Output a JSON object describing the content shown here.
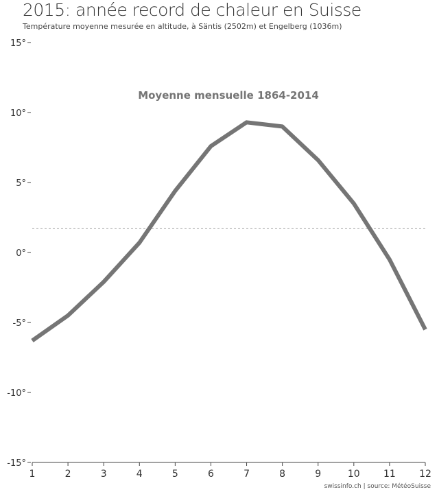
{
  "header": {
    "title": "2015: année record de chaleur en Suisse",
    "subtitle": "Température moyenne mesurée en altitude, à Säntis (2502m) et Engelberg (1036m)"
  },
  "footer": {
    "source": "swissinfo.ch | source: MétéoSuisse"
  },
  "chart_data": {
    "type": "line",
    "title": "Moyenne mensuelle 1864-2014",
    "xlabel": "",
    "ylabel": "",
    "x": [
      1,
      2,
      3,
      4,
      5,
      6,
      7,
      8,
      9,
      10,
      11,
      12
    ],
    "series": [
      {
        "name": "Moyenne mensuelle 1864-2014",
        "values": [
          -6.3,
          -4.5,
          -2.1,
          0.7,
          4.4,
          7.6,
          9.3,
          9.0,
          6.6,
          3.5,
          -0.5,
          -5.5
        ],
        "color": "#757575"
      }
    ],
    "reference_line": {
      "value": 1.7,
      "style": "dashed",
      "color": "#aaaaaa"
    },
    "xlim": [
      1,
      12
    ],
    "ylim": [
      -15,
      15
    ],
    "x_ticks": [
      "1",
      "2",
      "3",
      "4",
      "5",
      "6",
      "7",
      "8",
      "9",
      "10",
      "11",
      "12"
    ],
    "y_ticks": [
      {
        "value": 15,
        "label": "15°"
      },
      {
        "value": 10,
        "label": "10°"
      },
      {
        "value": 5,
        "label": "5°"
      },
      {
        "value": 0,
        "label": "0°"
      },
      {
        "value": -5,
        "label": "-5°"
      },
      {
        "value": -10,
        "label": "-10°"
      },
      {
        "value": -15,
        "label": "-15°"
      }
    ],
    "grid": false
  }
}
